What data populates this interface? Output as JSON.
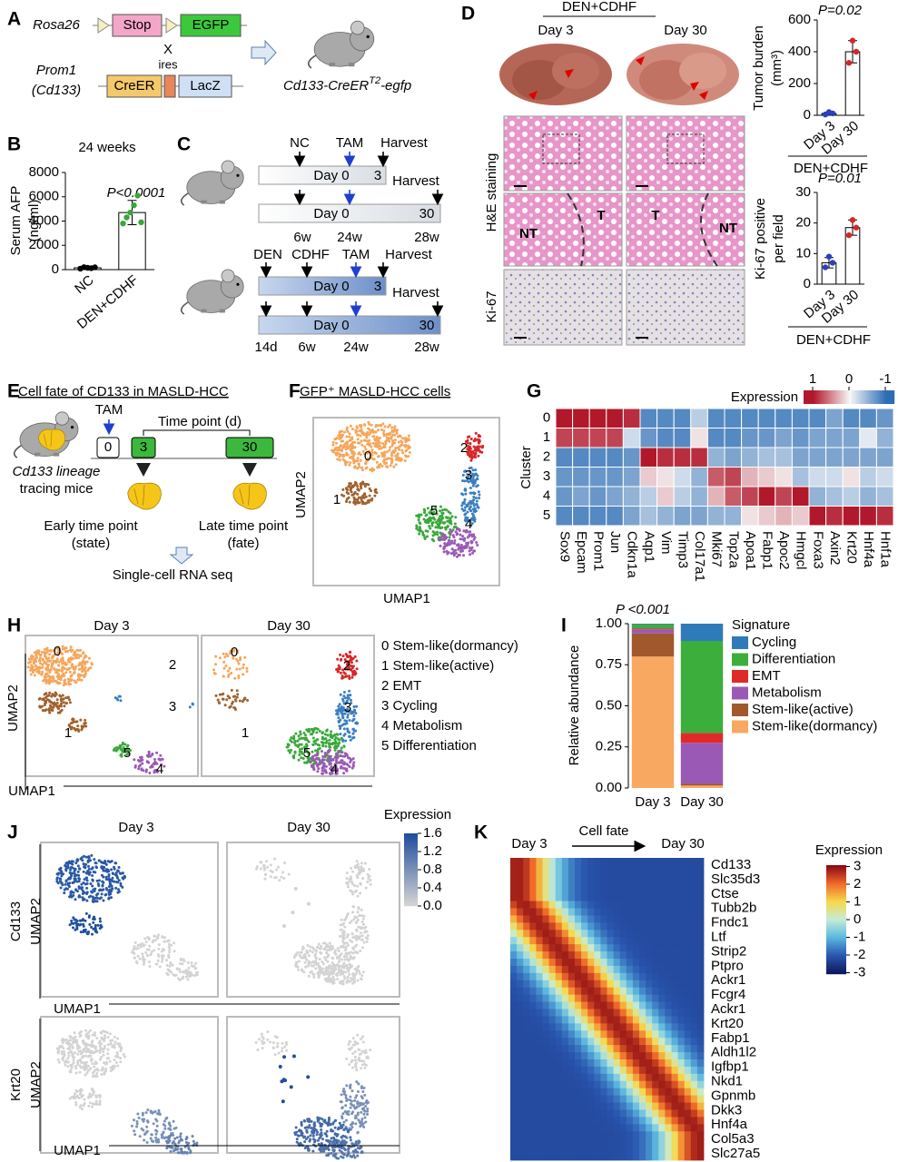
{
  "panel_labels": [
    "A",
    "B",
    "C",
    "D",
    "E",
    "F",
    "G",
    "H",
    "I",
    "J",
    "K"
  ],
  "A": {
    "rosa26": "Rosa26",
    "stop": "Stop",
    "egfp": "EGFP",
    "cross": "X",
    "ires": "ires",
    "prom1": "Prom1",
    "cd133": "(Cd133)",
    "creer": "CreER",
    "lacz": "LacZ",
    "mouse_line": "Cd133-CreER",
    "superscript": "T2",
    "suffix": "-egfp"
  },
  "B": {
    "type": "bar",
    "title": "24 weeks",
    "y_label": [
      "Serum AFP",
      "(ng/ml)"
    ],
    "annotation": "P<0.0001",
    "categories": [
      "NC",
      "DEN+CDHF"
    ],
    "values": [
      150,
      4700
    ],
    "errors": [
      60,
      1000
    ],
    "points": [
      [
        80,
        200,
        150,
        120,
        190
      ],
      [
        3800,
        4300,
        4700,
        5300,
        6100,
        3900
      ]
    ],
    "point_colors": [
      "#000000",
      "#3aa53a"
    ],
    "ylim": [
      0,
      8000
    ],
    "yticks": [
      0,
      2000,
      4000,
      6000,
      8000
    ]
  },
  "C": {
    "timelines": [
      {
        "above": [
          "NC",
          "TAM",
          "Harvest"
        ],
        "bar": [
          "Day 0",
          "3"
        ]
      },
      {
        "above": [
          "Harvest"
        ],
        "bar": [
          "Day 0",
          "30"
        ],
        "below": [
          "6w",
          "24w",
          "28w"
        ]
      },
      {
        "above": [
          "DEN",
          "CDHF",
          "TAM",
          "Harvest"
        ],
        "bar": [
          "Day 0",
          "3"
        ]
      },
      {
        "above": [
          "Harvest"
        ],
        "bar": [
          "Day 0",
          "30"
        ],
        "below": [
          "14d",
          "6w",
          "24w",
          "28w"
        ]
      }
    ]
  },
  "D": {
    "header": "DEN+CDHF",
    "days": [
      "Day 3",
      "Day 30"
    ],
    "stains": [
      "H&E staining",
      "Ki-67"
    ],
    "regions": [
      "NT",
      "T",
      "T",
      "NT"
    ],
    "charts": [
      {
        "type": "bar",
        "y_label": [
          "Tumor burden",
          "(mm³)"
        ],
        "annotation": "P=0.02",
        "group_label": "DEN+CDHF",
        "categories": [
          "Day 3",
          "Day 30"
        ],
        "values": [
          12,
          400
        ],
        "errors": [
          8,
          70
        ],
        "points": [
          [
            5,
            20,
            12
          ],
          [
            330,
            470,
            400
          ]
        ],
        "point_colors": [
          "#2b3fbf",
          "#d62728"
        ],
        "ylim": [
          0,
          600
        ],
        "yticks": [
          0,
          200,
          400,
          600
        ]
      },
      {
        "type": "bar",
        "y_label": [
          "Ki-67 positive",
          "per field"
        ],
        "annotation": "P=0.01",
        "group_label": "DEN+CDHF",
        "categories": [
          "Day 3",
          "Day 30"
        ],
        "values": [
          7,
          18.5
        ],
        "errors": [
          1.7,
          2.5
        ],
        "points": [
          [
            5.5,
            9,
            7
          ],
          [
            16,
            21,
            18.5
          ]
        ],
        "point_colors": [
          "#2b3fbf",
          "#d62728"
        ],
        "ylim": [
          0,
          30
        ],
        "yticks": [
          0,
          10,
          20,
          30
        ]
      }
    ]
  },
  "E": {
    "title": "Cell fate of CD133 in MASLD-HCC",
    "tam": "TAM",
    "axis": "Time point (d)",
    "points": [
      "0",
      "3",
      "30"
    ],
    "mice": [
      "Cd133 lineage",
      "tracing mice"
    ],
    "early": [
      "Early time point",
      "(state)"
    ],
    "late": [
      "Late time point",
      "(fate)"
    ],
    "method": "Single-cell RNA seq"
  },
  "F": {
    "title": "GFP⁺ MASLD-HCC cells",
    "x_label": "UMAP1",
    "y_label": "UMAP2",
    "clusters": [
      "0",
      "1",
      "2",
      "3",
      "4",
      "5"
    ],
    "cluster_colors": [
      "#f5a65b",
      "#a0612c",
      "#d62728",
      "#3a7fc1",
      "#9b59b6",
      "#3aa83a"
    ]
  },
  "G": {
    "type": "heatmap",
    "legend_title": "Expression",
    "colorbar_ticks": [
      1,
      0,
      -1
    ],
    "colors": [
      "#b2182b",
      "#f7f7f7",
      "#2c6db5"
    ],
    "y_label": "Cluster",
    "rows": [
      "0",
      "1",
      "2",
      "3",
      "4",
      "5"
    ],
    "columns": [
      "Sox9",
      "Epcam",
      "Prom1",
      "Jun",
      "Cdkn1a",
      "Aqp1",
      "Vim",
      "Timp3",
      "Col17a1",
      "Mki67",
      "Top2a",
      "Apoa1",
      "Fabp1",
      "Apoc2",
      "Hmgcl",
      "Foxa3",
      "Axin2",
      "Krt20",
      "Hnf4a",
      "Hnf1a"
    ],
    "values": [
      [
        1,
        1,
        1,
        1,
        0.9,
        -0.8,
        -0.8,
        -0.8,
        -0.3,
        -0.8,
        -0.8,
        -0.8,
        -0.8,
        -0.8,
        -0.8,
        -0.8,
        -0.6,
        -0.8,
        -0.8,
        -0.7
      ],
      [
        0.8,
        0.8,
        0.8,
        0.8,
        -0.2,
        -0.7,
        -0.8,
        -0.8,
        0.1,
        -0.8,
        -0.8,
        -0.7,
        -0.7,
        -0.6,
        -0.7,
        -0.6,
        -0.6,
        -0.6,
        -0.1,
        -0.5
      ],
      [
        -0.8,
        -0.8,
        -0.8,
        -0.8,
        -0.7,
        1,
        0.9,
        0.9,
        0.9,
        -0.5,
        -0.6,
        -0.5,
        -0.4,
        -0.4,
        -0.6,
        -0.6,
        -0.6,
        -0.6,
        -0.6,
        -0.6
      ],
      [
        -0.7,
        -0.7,
        -0.7,
        -0.7,
        -0.6,
        0.2,
        0.1,
        -0.2,
        -0.5,
        0.7,
        0.8,
        0.3,
        0.2,
        0.1,
        -0.4,
        -0.2,
        -0.2,
        0.1,
        -0.3,
        -0.2
      ],
      [
        -0.7,
        -0.6,
        -0.7,
        -0.6,
        -0.5,
        -0.3,
        0.2,
        -0.3,
        -0.5,
        0.3,
        0.7,
        0.8,
        1,
        0.8,
        1,
        -0.5,
        -0.4,
        -0.3,
        -0.5,
        -0.4
      ],
      [
        -0.8,
        -0.8,
        -0.8,
        -0.8,
        -0.6,
        -0.4,
        -0.5,
        -0.6,
        -0.6,
        -0.5,
        -0.5,
        0.1,
        0.2,
        0.3,
        0.2,
        1,
        0.9,
        1,
        1,
        0.9
      ]
    ]
  },
  "H": {
    "days": [
      "Day 3",
      "Day 30"
    ],
    "x_label": "UMAP1",
    "y_label": "UMAP2",
    "clusters": [
      "0",
      "1",
      "2",
      "3",
      "4",
      "5"
    ],
    "cluster_colors": [
      "#f5a65b",
      "#a0612c",
      "#d62728",
      "#3a7fc1",
      "#9b59b6",
      "#3aa83a"
    ],
    "legend": [
      "0 Stem-like(dormancy)",
      "1 Stem-like(active)",
      "2 EMT",
      "3 Cycling",
      "4 Metabolism",
      "5 Differentiation"
    ]
  },
  "I": {
    "type": "stacked_bar",
    "annotation": "P <0.001",
    "y_label": "Relative abundance",
    "legend_title": "Signature",
    "categories": [
      "Day 3",
      "Day 30"
    ],
    "series": [
      {
        "name": "Cycling",
        "color": "#2f7ab9",
        "values": [
          0.005,
          0.105
        ]
      },
      {
        "name": "Differentiation",
        "color": "#3cae3c",
        "values": [
          0.025,
          0.56
        ]
      },
      {
        "name": "EMT",
        "color": "#e02a2a",
        "values": [
          0.005,
          0.06
        ]
      },
      {
        "name": "Metabolism",
        "color": "#9b59b6",
        "values": [
          0.025,
          0.25
        ]
      },
      {
        "name": "Stem-like(active)",
        "color": "#a0582c",
        "values": [
          0.14,
          0.01
        ]
      },
      {
        "name": "Stem-like(dormancy)",
        "color": "#f8a860",
        "values": [
          0.8,
          0.015
        ]
      }
    ],
    "ylim": [
      0,
      1
    ],
    "yticks": [
      {
        "value": 0,
        "label": "0.00"
      },
      0.25,
      {
        "value": 0.5,
        "label": "0.50"
      },
      0.75,
      {
        "value": 1,
        "label": "1.00"
      }
    ]
  },
  "J": {
    "legend_title": "Expression",
    "colorbar_lim": [
      0,
      1.6
    ],
    "colorbar_ticks": [
      1.6,
      1.2,
      0.8,
      0.4,
      {
        "value": 0,
        "label": "0.0"
      }
    ],
    "colors": [
      "#d3d3d3",
      "#1f4e9c"
    ],
    "days": [
      "Day 3",
      "Day 30"
    ],
    "genes": [
      "Cd133",
      "Krt20"
    ],
    "x_label": "UMAP1",
    "y_label": "UMAP2"
  },
  "K": {
    "start": "Day 3",
    "arrow_label": "Cell fate",
    "end": "Day 30",
    "legend_title": "Expression",
    "colorbar_ticks": [
      3,
      2,
      1,
      0,
      -1,
      -2,
      -3
    ],
    "colors": [
      "#0d1a5e",
      "#2a57b0",
      "#5cb8e0",
      "#c6ecd8",
      "#f5d94a",
      "#f06a2a",
      "#8c0a14"
    ],
    "gene_groups": [
      {
        "color": "#f2a64a",
        "genes": [
          "Cd133",
          "Slc35d3",
          "Ctse",
          "Tubb2b"
        ]
      },
      {
        "color": "#9c5a22",
        "genes": [
          "Fndc1",
          "Ltf",
          "Strip2",
          "Ptpro"
        ]
      },
      {
        "color": "#9b4fb6",
        "genes": [
          "Ackr1",
          "Fcgr4",
          "Ackr1",
          "Krt20",
          "Fabp1"
        ]
      },
      {
        "color": "#d62728",
        "genes": [
          "Aldh1l2",
          "Igfbp1",
          "Nkd1",
          "Gpnmb"
        ]
      },
      {
        "color": "#2ca02c",
        "genes": [
          "Dkk3"
        ]
      },
      {
        "color": "#3a7fc1",
        "genes": [
          "Hnf4a",
          "Col5a3",
          "Slc27a5"
        ]
      }
    ]
  }
}
